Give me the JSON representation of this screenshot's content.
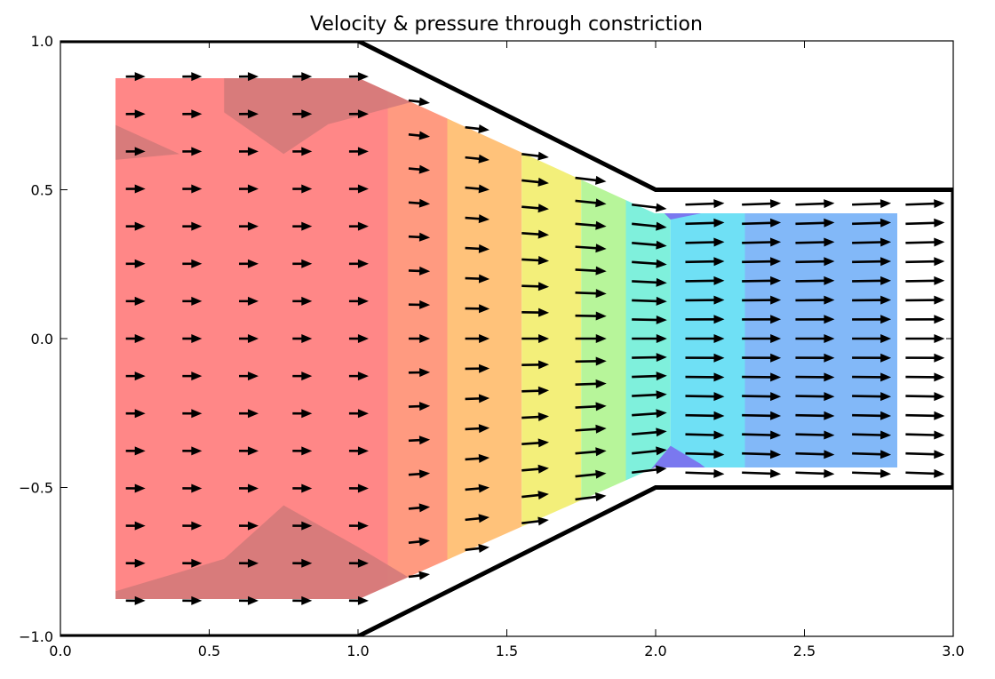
{
  "chart_data": {
    "type": "contour_quiver",
    "title": "Velocity & pressure through constriction",
    "xlabel": "",
    "ylabel": "",
    "xlim": [
      0.0,
      3.0
    ],
    "ylim": [
      -1.0,
      1.0
    ],
    "x_ticks": [
      "0.0",
      "0.5",
      "1.0",
      "1.5",
      "2.0",
      "2.5",
      "3.0"
    ],
    "y_ticks": [
      "1.0",
      "0.5",
      "0.0",
      "−0.5",
      "−1.0"
    ],
    "x_tick_values": [
      0.0,
      0.5,
      1.0,
      1.5,
      2.0,
      2.5,
      3.0
    ],
    "y_tick_values": [
      1.0,
      0.5,
      0.0,
      -0.5,
      -1.0
    ],
    "grid": false,
    "legend": "none",
    "wall_outline": [
      [
        0,
        1
      ],
      [
        1,
        1
      ],
      [
        2,
        0.5
      ],
      [
        3,
        0.5
      ],
      [
        3,
        -0.5
      ],
      [
        2,
        -0.5
      ],
      [
        1,
        -1
      ],
      [
        0,
        -1
      ]
    ],
    "pressure_bands": [
      {
        "x_range": [
          0.18,
          1.1
        ],
        "color": "#ff8787"
      },
      {
        "x_range": [
          1.1,
          1.3
        ],
        "color": "#ff9a80"
      },
      {
        "x_range": [
          1.3,
          1.55
        ],
        "color": "#ffc27a"
      },
      {
        "x_range": [
          1.55,
          1.75
        ],
        "color": "#f3ef7a"
      },
      {
        "x_range": [
          1.75,
          1.9
        ],
        "color": "#b7f59a"
      },
      {
        "x_range": [
          1.9,
          2.05
        ],
        "color": "#7ff0dc"
      },
      {
        "x_range": [
          2.05,
          2.3
        ],
        "color": "#6fe0f5"
      },
      {
        "x_range": [
          2.3,
          2.82
        ],
        "color": "#82b8f8"
      }
    ],
    "high_pressure_color": "#d47a7a",
    "low_pressure_color": "#7a78ef",
    "velocity_field": {
      "x": [
        0.22,
        0.41,
        0.6,
        0.78,
        0.97,
        1.17,
        1.36,
        1.55,
        1.73,
        1.92,
        2.1,
        2.29,
        2.47,
        2.66,
        2.84
      ],
      "y_extent": [
        0.88,
        0.88,
        0.88,
        0.88,
        0.88,
        0.8,
        0.71,
        0.62,
        0.54,
        0.45,
        0.45,
        0.45,
        0.45,
        0.45,
        0.45
      ],
      "u": [
        1.0,
        1.0,
        1.0,
        1.0,
        1.0,
        1.1,
        1.25,
        1.4,
        1.6,
        1.8,
        2.0,
        2.0,
        2.0,
        2.0,
        2.0
      ],
      "v_sign_factor": 0.12,
      "rows": 15
    },
    "arrow_color": "#000000"
  }
}
